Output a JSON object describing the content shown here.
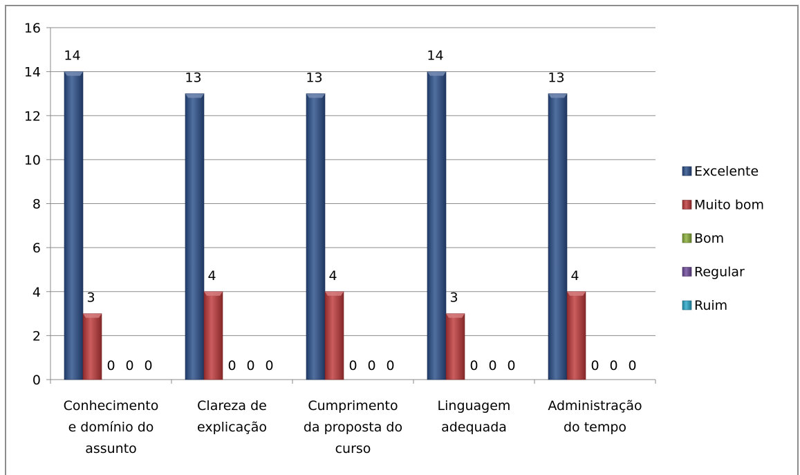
{
  "chart_data": {
    "type": "bar",
    "categories": [
      "Conhecimento e domínio do assunto",
      "Clareza de explicação",
      "Cumprimento da proposta do curso",
      "Linguagem adequada",
      "Administração do tempo"
    ],
    "category_lines": [
      [
        "Conhecimento",
        "e domínio do",
        "assunto"
      ],
      [
        "Clareza de",
        "explicação"
      ],
      [
        "Cumprimento",
        "da proposta do",
        "curso"
      ],
      [
        "Linguagem",
        "adequada"
      ],
      [
        "Administração",
        "do tempo"
      ]
    ],
    "series": [
      {
        "name": "Excelente",
        "values": [
          14,
          13,
          13,
          14,
          13
        ],
        "color": "#2b4f8a"
      },
      {
        "name": "Muito bom",
        "values": [
          3,
          4,
          4,
          3,
          4
        ],
        "color": "#c0393b"
      },
      {
        "name": "Bom",
        "values": [
          0,
          0,
          0,
          0,
          0
        ],
        "color": "#8bb13b"
      },
      {
        "name": "Regular",
        "values": [
          0,
          0,
          0,
          0,
          0
        ],
        "color": "#6f4a9c"
      },
      {
        "name": "Ruim",
        "values": [
          0,
          0,
          0,
          0,
          0
        ],
        "color": "#2aa9c9"
      }
    ],
    "ylim": [
      0,
      16
    ],
    "yticks": [
      "0",
      "2",
      "4",
      "6",
      "8",
      "10",
      "12",
      "14",
      "16"
    ],
    "grid": true,
    "legend_position": "right",
    "data_labels": true,
    "title": "",
    "xlabel": "",
    "ylabel": ""
  }
}
